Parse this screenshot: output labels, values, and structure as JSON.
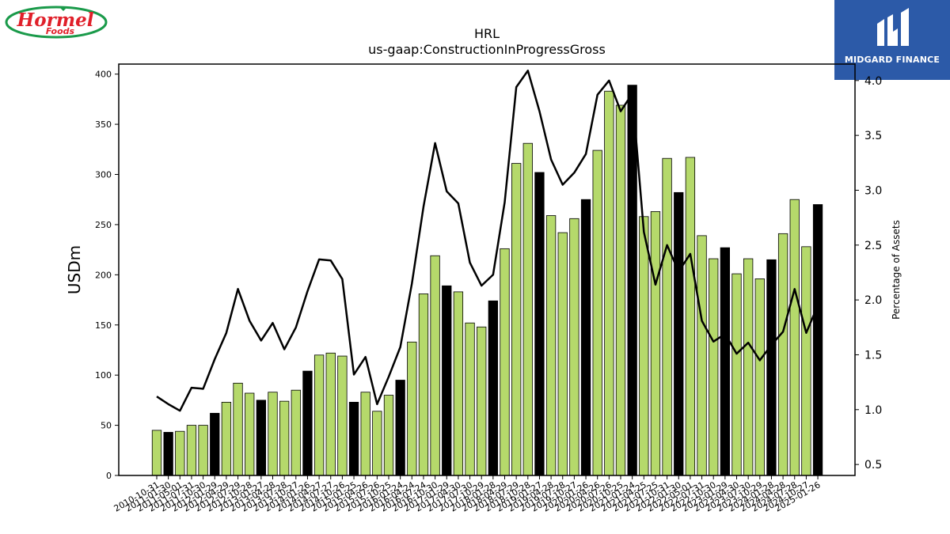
{
  "logos": {
    "left": {
      "line1": "Hormel",
      "line2": "Foods"
    },
    "right": {
      "name": "MIDGARD FINANCE"
    }
  },
  "chart_data": {
    "type": "bar",
    "title": "HRL",
    "subtitle": "us-gaap:ConstructionInProgressGross",
    "ylabel": "USDm",
    "y2label": "Percentage of Assets",
    "ylim": [
      0,
      410
    ],
    "y2lim": [
      0.4,
      4.15
    ],
    "yticks": [
      0,
      50,
      100,
      150,
      200,
      250,
      300,
      350,
      400
    ],
    "y2ticks": [
      0.5,
      1.0,
      1.5,
      2.0,
      2.5,
      3.0,
      3.5,
      4.0
    ],
    "y2tick_labels": [
      "0.5",
      "1.0",
      "1.5",
      "2.0",
      "2.5",
      "3.0",
      "3.5",
      "4.0"
    ],
    "categories": [
      "2010-10-31",
      "2011-01-30",
      "2011-05-01",
      "2011-07-31",
      "2011-10-30",
      "2012-01-29",
      "2012-04-29",
      "2012-07-29",
      "2012-10-28",
      "2013-01-27",
      "2013-04-28",
      "2013-07-28",
      "2013-10-27",
      "2014-01-26",
      "2014-04-27",
      "2014-07-27",
      "2014-10-26",
      "2015-01-25",
      "2015-04-26",
      "2015-07-26",
      "2015-10-25",
      "2016-01-24",
      "2016-04-24",
      "2016-07-24",
      "2016-10-30",
      "2017-01-29",
      "2017-04-30",
      "2017-07-30",
      "2017-10-29",
      "2018-01-28",
      "2018-04-29",
      "2018-07-29",
      "2018-10-28",
      "2019-01-27",
      "2019-04-28",
      "2019-07-28",
      "2019-10-27",
      "2020-01-26",
      "2020-04-26",
      "2020-07-26",
      "2020-10-25",
      "2021-01-24",
      "2021-04-25",
      "2021-07-25",
      "2021-10-31",
      "2022-01-30",
      "2022-05-01",
      "2022-07-31",
      "2022-10-30",
      "2023-01-29",
      "2023-04-30",
      "2023-07-30",
      "2023-10-29",
      "2024-01-28",
      "2024-04-28",
      "2024-07-28",
      "2024-10-27",
      "2025-01-26"
    ],
    "series": [
      {
        "type": "bar",
        "axis": "left",
        "values": [
          45,
          43,
          44,
          50,
          50,
          62,
          73,
          92,
          82,
          75,
          83,
          74,
          85,
          104,
          120,
          122,
          119,
          73,
          83,
          64,
          80,
          95,
          133,
          181,
          219,
          189,
          183,
          152,
          148,
          174,
          226,
          311,
          331,
          302,
          259,
          242,
          256,
          275,
          324,
          383,
          369,
          389,
          258,
          263,
          316,
          282,
          317,
          239,
          216,
          227,
          201,
          216,
          196,
          215,
          241,
          275,
          228,
          270
        ],
        "fourth_quarter_highlight": [
          false,
          true,
          false,
          false,
          false,
          true,
          false,
          false,
          false,
          true,
          false,
          false,
          false,
          true,
          false,
          false,
          false,
          true,
          false,
          false,
          false,
          true,
          false,
          false,
          false,
          true,
          false,
          false,
          false,
          true,
          false,
          false,
          false,
          true,
          false,
          false,
          false,
          true,
          false,
          false,
          false,
          true,
          false,
          false,
          false,
          true,
          false,
          false,
          false,
          true,
          false,
          false,
          false,
          true,
          false,
          false,
          false,
          true
        ]
      },
      {
        "type": "line",
        "axis": "right",
        "values": [
          1.12,
          1.05,
          0.99,
          1.2,
          1.19,
          1.46,
          1.7,
          2.1,
          1.81,
          1.63,
          1.79,
          1.55,
          1.75,
          2.08,
          2.37,
          2.36,
          2.19,
          1.32,
          1.48,
          1.05,
          1.3,
          1.57,
          2.15,
          2.85,
          3.43,
          2.99,
          2.88,
          2.34,
          2.13,
          2.23,
          2.89,
          3.94,
          4.09,
          3.72,
          3.28,
          3.05,
          3.16,
          3.33,
          3.87,
          4.0,
          3.72,
          3.88,
          2.62,
          2.14,
          2.5,
          2.26,
          2.42,
          1.81,
          1.62,
          1.69,
          1.51,
          1.61,
          1.45,
          1.59,
          1.71,
          2.1,
          1.7,
          1.95
        ]
      }
    ],
    "colors": {
      "bar": "#b5d96b",
      "bar_highlight": "#000000",
      "line": "#000000",
      "edge": "#000000"
    },
    "grid": false
  }
}
